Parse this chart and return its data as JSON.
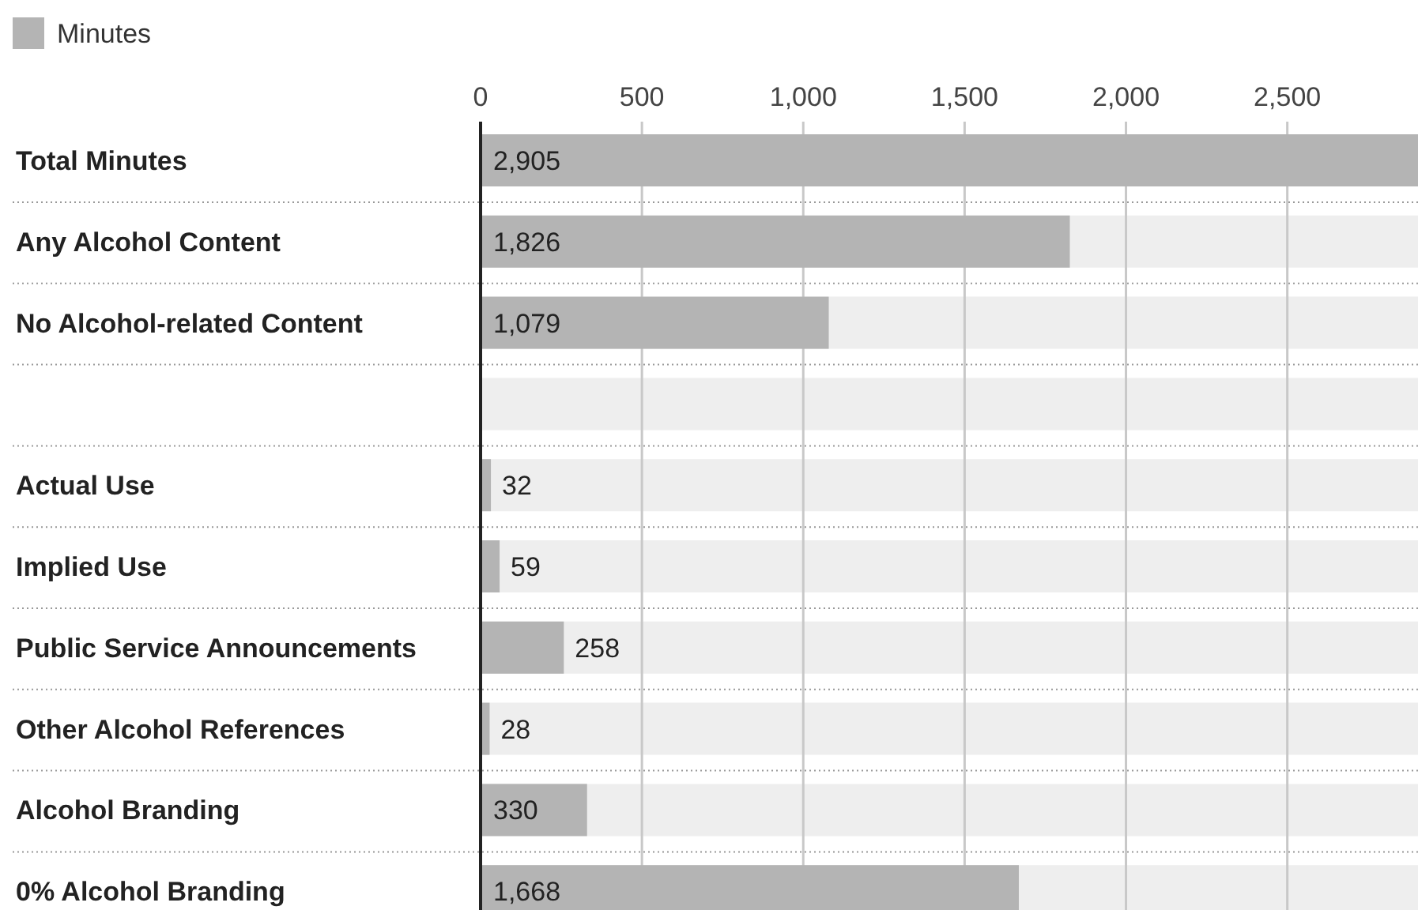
{
  "chart_data": {
    "type": "bar",
    "orientation": "horizontal",
    "categories": [
      "Total Minutes",
      "Any Alcohol Content",
      "No Alcohol-related Content",
      null,
      "Actual Use",
      "Implied Use",
      "Public Service Announcements",
      "Other Alcohol References",
      "Alcohol Branding",
      "0% Alcohol Branding"
    ],
    "series": [
      {
        "name": "Minutes",
        "color": "#b4b4b4",
        "values": [
          2905,
          1826,
          1079,
          null,
          32,
          59,
          258,
          28,
          330,
          1668
        ]
      }
    ],
    "xlim": [
      0,
      2905
    ],
    "xticks": [
      0,
      500,
      {
        "value": 1000,
        "label": "1,000"
      },
      {
        "value": 1500,
        "label": "1,500"
      },
      {
        "value": 2000,
        "label": "2,000"
      },
      {
        "value": 2500,
        "label": "2,500"
      }
    ],
    "grid": true,
    "legend": "top left",
    "value_labels": [
      "2,905",
      "1,826",
      "1,079",
      null,
      "32",
      "59",
      "258",
      "28",
      "330",
      "1,668"
    ]
  }
}
